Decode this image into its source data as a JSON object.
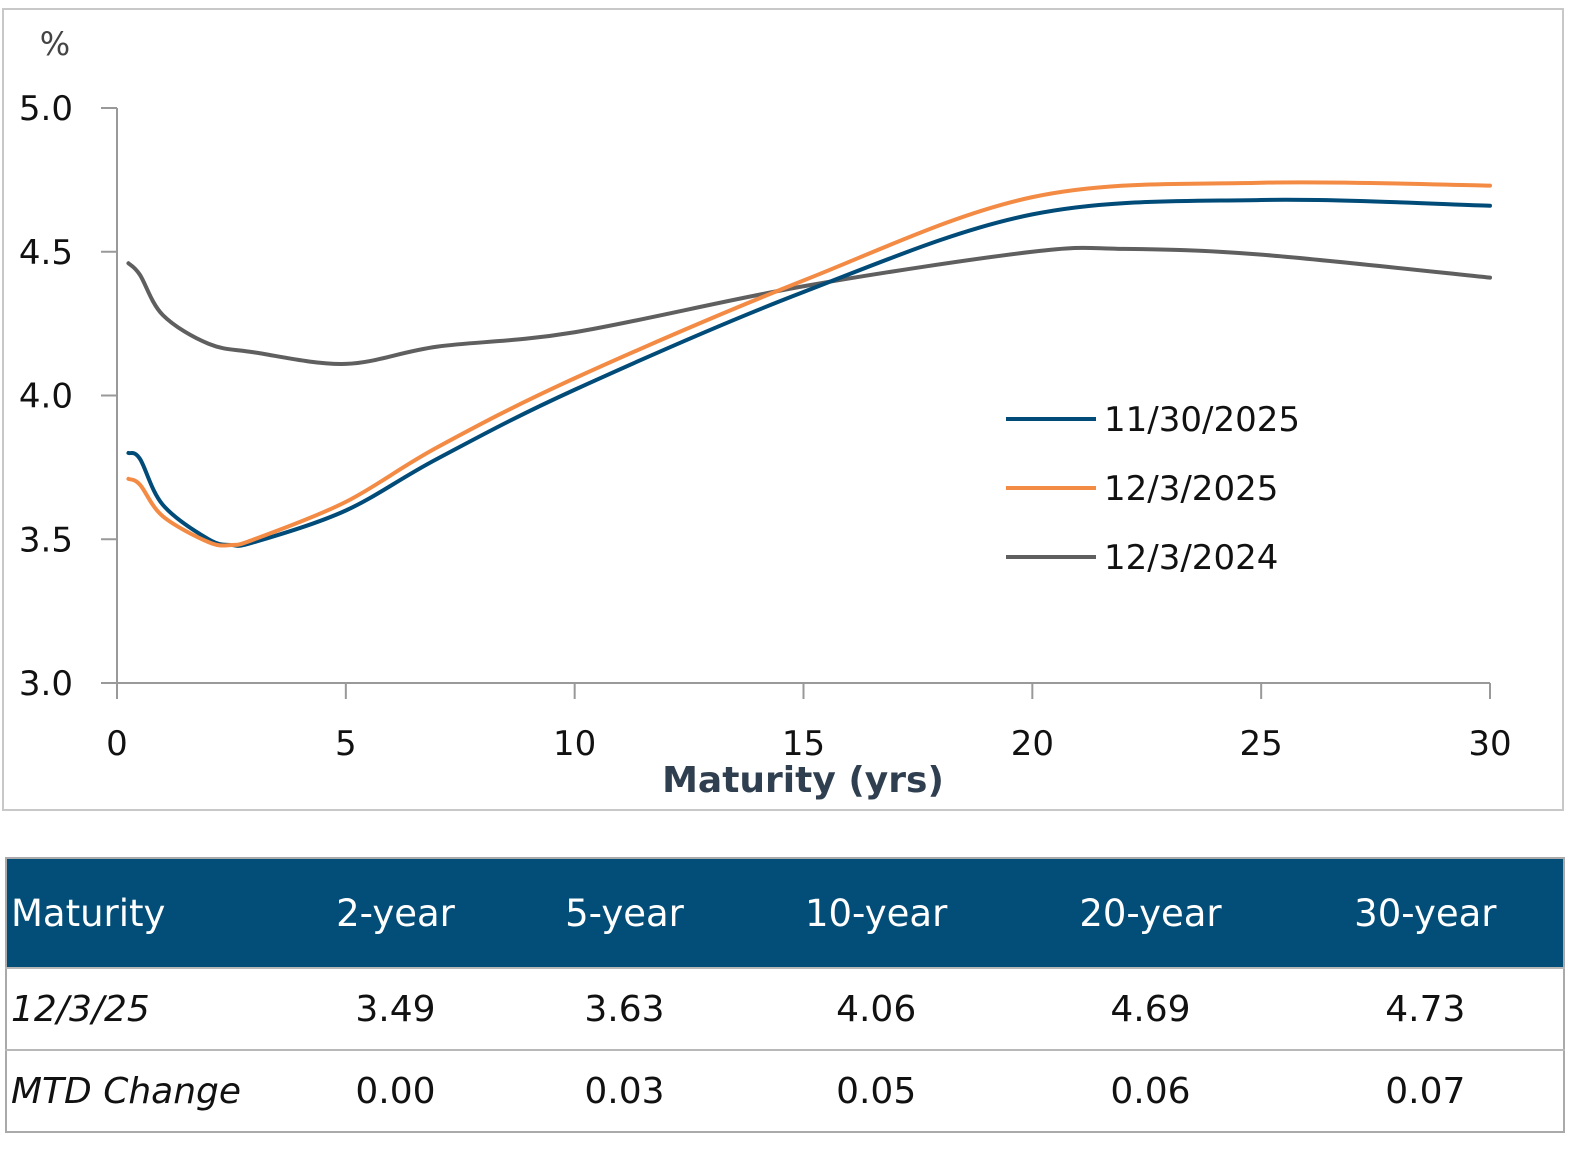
{
  "chart_data": {
    "type": "line",
    "title": "",
    "xlabel": "Maturity (yrs)",
    "ylabel": "%",
    "xlim": [
      0,
      30
    ],
    "ylim": [
      3.0,
      5.0
    ],
    "xticks": [
      0,
      5,
      10,
      15,
      20,
      25,
      30
    ],
    "yticks": [
      "3.0",
      "3.5",
      "4.0",
      "4.5",
      "5.0"
    ],
    "grid": false,
    "legend_position": "center-right",
    "series": [
      {
        "name": "11/30/2025",
        "color": "#004b78",
        "x": [
          0.25,
          0.5,
          1,
          2,
          2.5,
          3,
          5,
          7,
          10,
          15,
          20,
          25,
          30
        ],
        "y": [
          3.8,
          3.78,
          3.62,
          3.5,
          3.48,
          3.49,
          3.6,
          3.78,
          4.02,
          4.36,
          4.63,
          4.68,
          4.66
        ]
      },
      {
        "name": "12/3/2025",
        "color": "#f38b45",
        "x": [
          0.25,
          0.5,
          1,
          2,
          2.5,
          3,
          5,
          7,
          10,
          15,
          20,
          25,
          30
        ],
        "y": [
          3.71,
          3.69,
          3.58,
          3.49,
          3.48,
          3.5,
          3.63,
          3.82,
          4.06,
          4.4,
          4.69,
          4.74,
          4.73
        ]
      },
      {
        "name": "12/3/2024",
        "color": "#5f5f5f",
        "x": [
          0.25,
          0.5,
          1,
          2,
          3,
          5,
          7,
          10,
          15,
          20,
          22,
          25,
          30
        ],
        "y": [
          4.46,
          4.42,
          4.28,
          4.18,
          4.15,
          4.11,
          4.17,
          4.22,
          4.38,
          4.5,
          4.51,
          4.49,
          4.41
        ]
      }
    ]
  },
  "table": {
    "header": [
      "Maturity",
      "2-year",
      "5-year",
      "10-year",
      "20-year",
      "30-year"
    ],
    "rows": [
      [
        "12/3/25",
        "3.49",
        "3.63",
        "4.06",
        "4.69",
        "4.73"
      ],
      [
        "MTD Change",
        "0.00",
        "0.03",
        "0.05",
        "0.06",
        "0.07"
      ]
    ],
    "header_color": "#024e78"
  }
}
